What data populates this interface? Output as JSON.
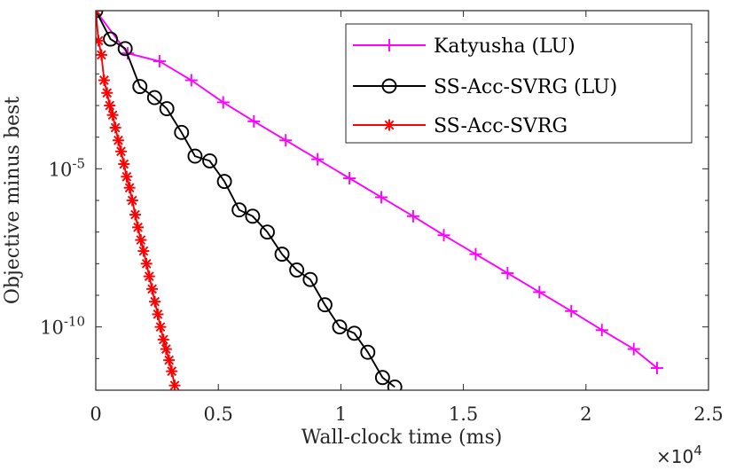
{
  "chart_data": {
    "type": "line",
    "xlabel": "Wall-clock time (ms)",
    "ylabel": "Objective minus best",
    "x_scale_label": "×10",
    "x_scale_exponent": "4",
    "xlim": [
      0,
      25000
    ],
    "ylim_log10": [
      -12,
      0
    ],
    "x_ticks": [
      {
        "value": 0,
        "label": "0"
      },
      {
        "value": 5000,
        "label": "0.5"
      },
      {
        "value": 10000,
        "label": "1"
      },
      {
        "value": 15000,
        "label": "1.5"
      },
      {
        "value": 20000,
        "label": "2"
      },
      {
        "value": 25000,
        "label": "2.5"
      }
    ],
    "y_ticks": [
      {
        "log10": -5,
        "base": "10",
        "exp": "-5"
      },
      {
        "log10": -10,
        "base": "10",
        "exp": "-10"
      }
    ],
    "legend_position": "top-right",
    "series": [
      {
        "name": "Katyusha (LU)",
        "color": "#ff00ff",
        "marker": "plus",
        "x": [
          0,
          1300,
          2600,
          3900,
          5200,
          6450,
          7750,
          9050,
          10350,
          11650,
          12950,
          14200,
          15500,
          16800,
          18100,
          19400,
          20650,
          21950,
          22900
        ],
        "log10_y": [
          0,
          -1.35,
          -1.6,
          -2.2,
          -2.9,
          -3.5,
          -4.1,
          -4.7,
          -5.3,
          -5.9,
          -6.5,
          -7.1,
          -7.7,
          -8.3,
          -8.9,
          -9.5,
          -10.1,
          -10.7,
          -11.3
        ]
      },
      {
        "name": "SS-Acc-SVRG (LU)",
        "color": "#000000",
        "marker": "circle",
        "x": [
          0,
          600,
          1200,
          1800,
          2400,
          2900,
          3500,
          4050,
          4650,
          5250,
          5850,
          6400,
          7000,
          7600,
          8200,
          8750,
          9350,
          9950,
          10550,
          11100,
          11700,
          12200
        ],
        "log10_y": [
          0,
          -0.9,
          -1.2,
          -2.4,
          -2.75,
          -3.1,
          -3.85,
          -4.6,
          -4.75,
          -5.4,
          -6.3,
          -6.5,
          -7.0,
          -7.7,
          -8.2,
          -8.5,
          -9.3,
          -10.0,
          -10.2,
          -10.8,
          -11.6,
          -11.9
        ]
      },
      {
        "name": "SS-Acc-SVRG",
        "color": "#ff0000",
        "marker": "asterisk",
        "x": [
          0,
          110,
          230,
          340,
          460,
          570,
          690,
          800,
          920,
          1030,
          1150,
          1260,
          1380,
          1490,
          1610,
          1720,
          1840,
          1950,
          2070,
          2180,
          2300,
          2410,
          2530,
          2640,
          2760,
          2870,
          2990,
          3100,
          3220
        ],
        "log10_y": [
          0,
          -0.95,
          -1.4,
          -2.2,
          -2.6,
          -3.0,
          -3.3,
          -3.7,
          -4.1,
          -4.45,
          -4.85,
          -5.25,
          -5.6,
          -6.0,
          -6.45,
          -6.85,
          -7.25,
          -7.6,
          -8.0,
          -8.4,
          -8.8,
          -9.2,
          -9.6,
          -10.0,
          -10.4,
          -10.7,
          -11.05,
          -11.4,
          -11.85
        ]
      }
    ]
  }
}
